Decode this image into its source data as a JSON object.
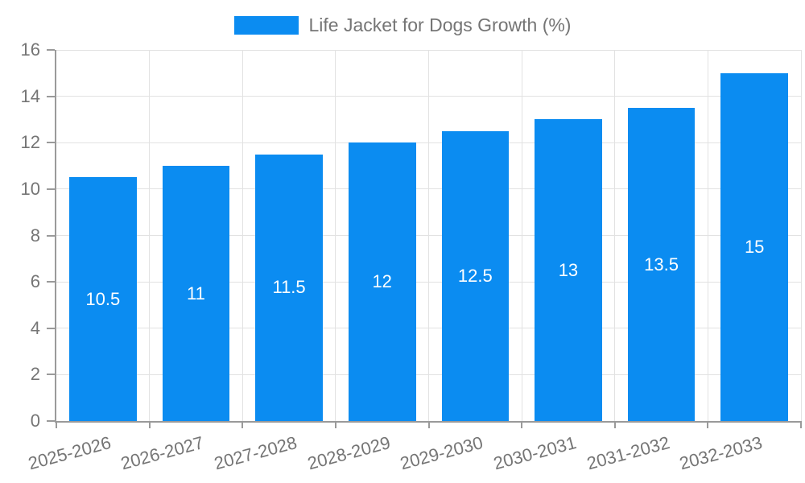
{
  "chart_data": {
    "type": "bar",
    "title": "Life Jacket for Dogs Growth (%)",
    "categories": [
      "2025-2026",
      "2026-2027",
      "2027-2028",
      "2028-2029",
      "2029-2030",
      "2030-2031",
      "2031-2032",
      "2032-2033"
    ],
    "values": [
      10.5,
      11,
      11.5,
      12,
      12.5,
      13,
      13.5,
      15
    ],
    "value_labels": [
      "10.5",
      "11",
      "11.5",
      "12",
      "12.5",
      "13",
      "13.5",
      "15"
    ],
    "xlabel": "",
    "ylabel": "",
    "ylim": [
      0,
      16
    ],
    "yticks": [
      0,
      2,
      4,
      6,
      8,
      10,
      12,
      14,
      16
    ],
    "grid": "both",
    "legend_position": "top-center",
    "colors": {
      "bar": "#0b8cf1",
      "grid": "#e2e2e2",
      "axis": "#9a9a9a",
      "tick_label": "#757575",
      "value_label": "#ffffff",
      "background": "#ffffff"
    }
  }
}
